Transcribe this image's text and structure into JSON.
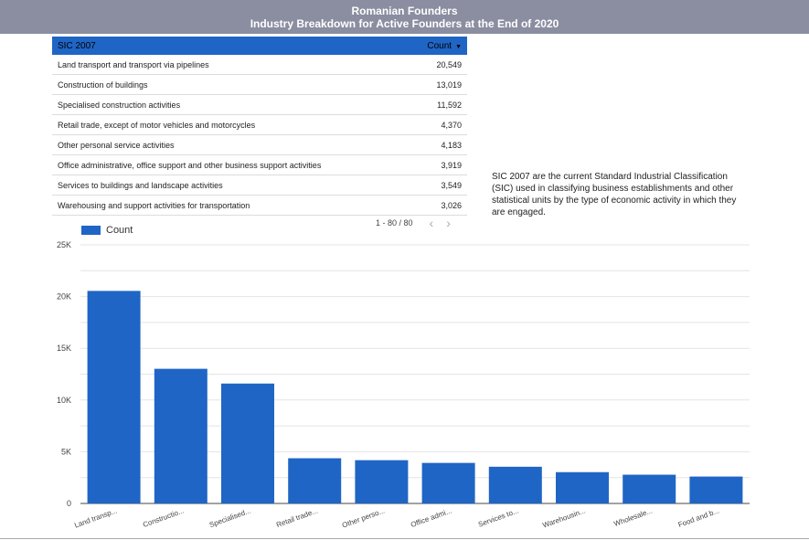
{
  "header": {
    "title": "Romanian Founders",
    "subtitle": "Industry Breakdown for Active Founders at the End of 2020"
  },
  "table": {
    "col_label": "SIC 2007",
    "col_count": "Count",
    "sort_icon": "caret-down-icon",
    "rows": [
      {
        "label": "Land transport and transport via pipelines",
        "count": "20,549"
      },
      {
        "label": "Construction of buildings",
        "count": "13,019"
      },
      {
        "label": "Specialised construction activities",
        "count": "11,592"
      },
      {
        "label": "Retail trade, except of motor vehicles and motorcycles",
        "count": "4,370"
      },
      {
        "label": "Other personal service activities",
        "count": "4,183"
      },
      {
        "label": "Office administrative, office support and other business support activities",
        "count": "3,919"
      },
      {
        "label": "Services to buildings and landscape activities",
        "count": "3,549"
      },
      {
        "label": "Warehousing and support activities for transportation",
        "count": "3,026"
      }
    ],
    "pagination": "1 - 80 / 80"
  },
  "description": "SIC 2007 are the current Standard Industrial Classification (SIC) used in classifying business establishments and other statistical units by the type of economic activity in which they are engaged.",
  "colors": {
    "accent": "#1f65c5",
    "header_bg": "#8a8ea0"
  },
  "chart_data": {
    "type": "bar",
    "legend": "Count",
    "categories": [
      "Land transp...",
      "Constructio...",
      "Specialised...",
      "Retail trade...",
      "Other perso...",
      "Office admi...",
      "Services to...",
      "Warehousin...",
      "Wholesale...",
      "Food and b..."
    ],
    "values": [
      20549,
      13019,
      11592,
      4370,
      4183,
      3919,
      3549,
      3026,
      2780,
      2600
    ],
    "ylim": [
      0,
      25000
    ],
    "yticks": [
      0,
      5000,
      10000,
      15000,
      20000,
      25000
    ],
    "ytick_labels": [
      "0",
      "5K",
      "10K",
      "15K",
      "20K",
      "25K"
    ]
  }
}
